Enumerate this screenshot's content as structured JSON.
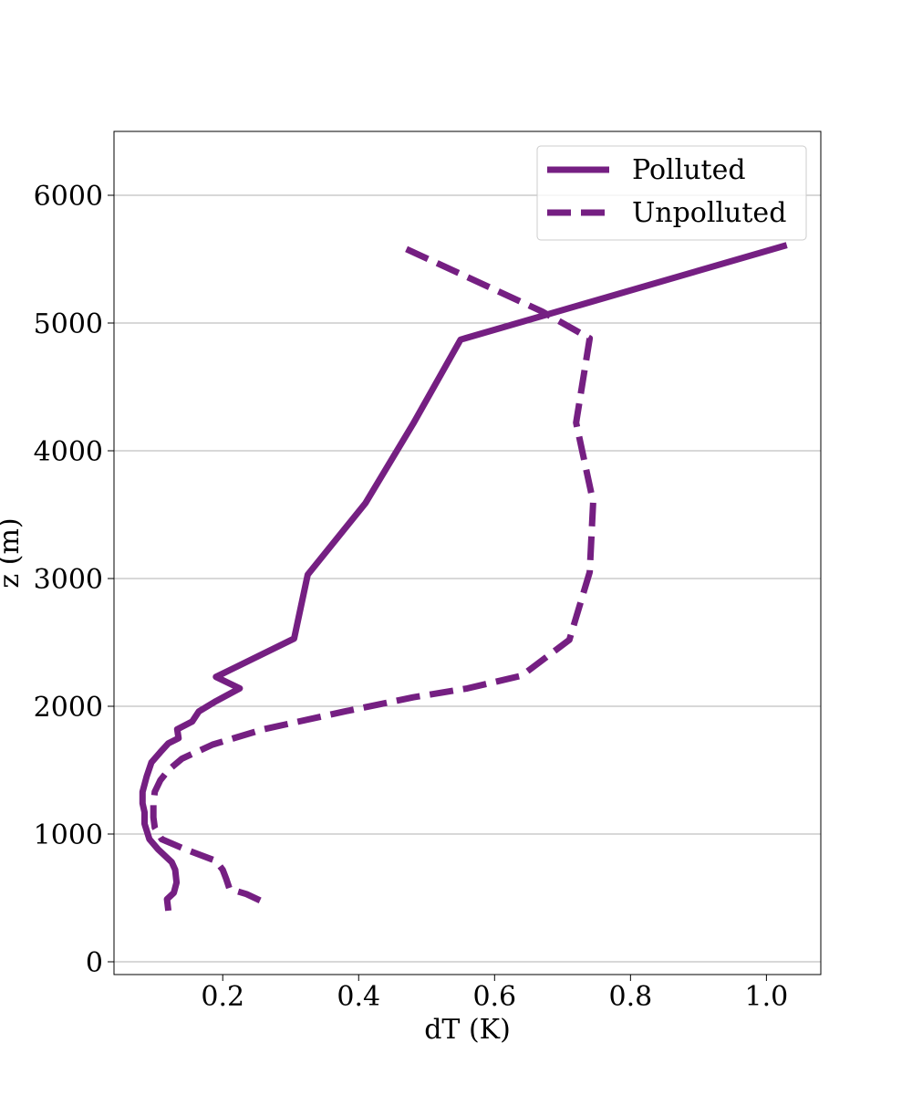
{
  "chart_data": {
    "type": "line",
    "title": "",
    "xlabel": "dT (K)",
    "ylabel": "z (m)",
    "xlim": [
      0.04,
      1.08
    ],
    "ylim": [
      -100,
      6500
    ],
    "xticks": [
      0.2,
      0.4,
      0.6,
      0.8,
      1.0
    ],
    "xtick_labels": [
      "0.2",
      "0.4",
      "0.6",
      "0.8",
      "1.0"
    ],
    "yticks": [
      0,
      1000,
      2000,
      3000,
      4000,
      5000,
      6000
    ],
    "ytick_labels": [
      "0",
      "1000",
      "2000",
      "3000",
      "4000",
      "5000",
      "6000"
    ],
    "grid": "horizontal",
    "legend_position": "top-right",
    "color": "#751f82",
    "series": [
      {
        "name": "Polluted",
        "style": "solid",
        "x": [
          0.12,
          0.118,
          0.128,
          0.132,
          0.13,
          0.125,
          0.105,
          0.092,
          0.085,
          0.085,
          0.082,
          0.082,
          0.088,
          0.095,
          0.108,
          0.12,
          0.135,
          0.133,
          0.155,
          0.165,
          0.19,
          0.225,
          0.19,
          0.305,
          0.325,
          0.41,
          0.48,
          0.55,
          1.03
        ],
        "y": [
          400,
          490,
          540,
          620,
          720,
          780,
          880,
          960,
          1080,
          1170,
          1240,
          1330,
          1450,
          1560,
          1640,
          1710,
          1750,
          1820,
          1880,
          1960,
          2040,
          2140,
          2230,
          2530,
          3030,
          3590,
          4210,
          4870,
          5610
        ]
      },
      {
        "name": "Unpolluted",
        "style": "dashed",
        "x": [
          0.255,
          0.235,
          0.21,
          0.205,
          0.2,
          0.19,
          0.145,
          0.11,
          0.1,
          0.098,
          0.098,
          0.1,
          0.108,
          0.12,
          0.14,
          0.185,
          0.26,
          0.38,
          0.48,
          0.56,
          0.64,
          0.71,
          0.74,
          0.745,
          0.72,
          0.74,
          0.67,
          0.47
        ],
        "y": [
          480,
          530,
          570,
          650,
          720,
          790,
          880,
          960,
          1050,
          1130,
          1230,
          1330,
          1420,
          1500,
          1590,
          1700,
          1820,
          1960,
          2070,
          2140,
          2240,
          2520,
          3050,
          3600,
          4220,
          4880,
          5090,
          5580
        ]
      }
    ]
  }
}
